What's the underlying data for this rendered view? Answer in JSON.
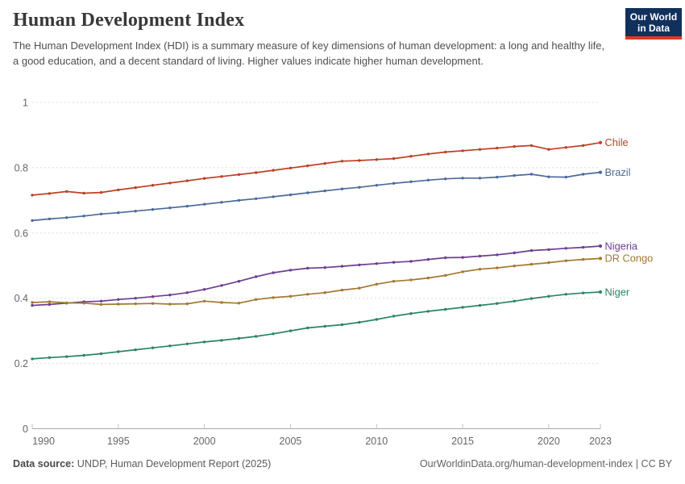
{
  "header": {
    "title": "Human Development Index",
    "subtitle": "The Human Development Index (HDI) is a summary measure of key dimensions of human development: a long and healthy life, a good education, and a decent standard of living. Higher values indicate higher human development.",
    "logo": {
      "line1": "Our World",
      "line2": "in Data"
    }
  },
  "footer": {
    "source_label": "Data source:",
    "source_text": " UNDP, Human Development Report (2025)",
    "link_text": "OurWorldinData.org/human-development-index | CC BY"
  },
  "chart_data": {
    "type": "line",
    "title": "Human Development Index",
    "xlabel": "",
    "ylabel": "",
    "grid": true,
    "legend_position": "right-end-labels",
    "ylim": [
      0,
      1
    ],
    "yticks": [
      0,
      0.2,
      0.4,
      0.6,
      0.8,
      1
    ],
    "ytick_labels": [
      "0",
      "0.2",
      "0.4",
      "0.6",
      "0.8",
      "1"
    ],
    "xticks": [
      1990,
      1995,
      2000,
      2005,
      2010,
      2015,
      2020,
      2023
    ],
    "xtick_labels": [
      "1990",
      "1995",
      "2000",
      "2005",
      "2010",
      "2015",
      "2020",
      "2023"
    ],
    "x": [
      1990,
      1991,
      1992,
      1993,
      1994,
      1995,
      1996,
      1997,
      1998,
      1999,
      2000,
      2001,
      2002,
      2003,
      2004,
      2005,
      2006,
      2007,
      2008,
      2009,
      2010,
      2011,
      2012,
      2013,
      2014,
      2015,
      2016,
      2017,
      2018,
      2019,
      2020,
      2021,
      2022,
      2023
    ],
    "series": [
      {
        "name": "Chile",
        "color": "#BC4125",
        "values": [
          0.716,
          0.721,
          0.727,
          0.722,
          0.724,
          0.732,
          0.739,
          0.746,
          0.753,
          0.76,
          0.767,
          0.773,
          0.779,
          0.785,
          0.792,
          0.799,
          0.806,
          0.813,
          0.82,
          0.822,
          0.825,
          0.828,
          0.835,
          0.842,
          0.848,
          0.852,
          0.856,
          0.86,
          0.865,
          0.868,
          0.856,
          0.862,
          0.868,
          0.877
        ]
      },
      {
        "name": "Brazil",
        "color": "#4C6A9C",
        "values": [
          0.638,
          0.643,
          0.647,
          0.652,
          0.658,
          0.662,
          0.667,
          0.672,
          0.677,
          0.682,
          0.688,
          0.694,
          0.7,
          0.705,
          0.711,
          0.717,
          0.723,
          0.729,
          0.735,
          0.74,
          0.746,
          0.752,
          0.757,
          0.762,
          0.766,
          0.768,
          0.768,
          0.771,
          0.776,
          0.78,
          0.772,
          0.771,
          0.78,
          0.786
        ]
      },
      {
        "name": "Nigeria",
        "color": "#6D3E91",
        "values": [
          0.378,
          0.381,
          0.385,
          0.389,
          0.391,
          0.396,
          0.4,
          0.405,
          0.41,
          0.417,
          0.427,
          0.439,
          0.452,
          0.466,
          0.478,
          0.486,
          0.492,
          0.494,
          0.498,
          0.502,
          0.506,
          0.51,
          0.513,
          0.519,
          0.524,
          0.525,
          0.529,
          0.533,
          0.539,
          0.546,
          0.549,
          0.553,
          0.556,
          0.56
        ]
      },
      {
        "name": "DR Congo",
        "color": "#A27830",
        "values": [
          0.387,
          0.389,
          0.386,
          0.385,
          0.381,
          0.382,
          0.383,
          0.384,
          0.382,
          0.383,
          0.391,
          0.387,
          0.385,
          0.396,
          0.402,
          0.406,
          0.412,
          0.417,
          0.425,
          0.431,
          0.443,
          0.452,
          0.456,
          0.462,
          0.47,
          0.481,
          0.489,
          0.493,
          0.499,
          0.504,
          0.509,
          0.515,
          0.519,
          0.522
        ]
      },
      {
        "name": "Niger",
        "color": "#2C8465",
        "values": [
          0.214,
          0.218,
          0.221,
          0.225,
          0.23,
          0.236,
          0.242,
          0.248,
          0.254,
          0.26,
          0.266,
          0.271,
          0.277,
          0.283,
          0.291,
          0.3,
          0.309,
          0.314,
          0.319,
          0.326,
          0.335,
          0.345,
          0.353,
          0.36,
          0.366,
          0.372,
          0.378,
          0.384,
          0.391,
          0.399,
          0.406,
          0.412,
          0.416,
          0.419
        ]
      }
    ],
    "axis_colors": {
      "grid": "#dcdcdc",
      "axis": "#a8a8a8",
      "tick": "#c0c0c0",
      "label": "#666666"
    }
  }
}
